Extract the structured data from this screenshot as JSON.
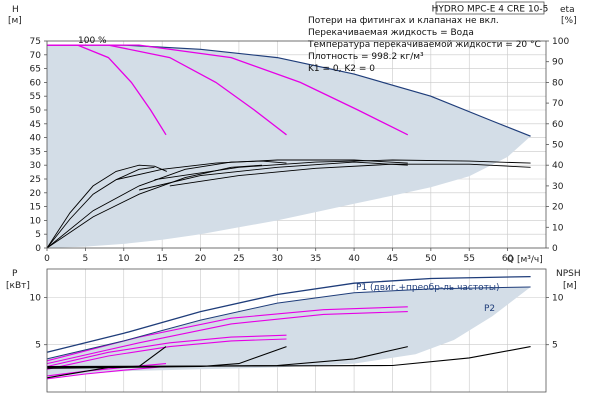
{
  "title": "HYDRO MPC-E 4 CRE 10-5",
  "notes": [
    "Потери на фитингах и клапанах не вкл.",
    "Перекачиваемая жидкость = Вода",
    "Температура перекачиваемой жидкости = 20 °C",
    "Плотность = 998.2 кг/м³",
    "K1 = 0, K2 = 0"
  ],
  "speed_label": "100 %",
  "colors": {
    "envelope_fill": "#d3dde7",
    "envelope_edge": "#1f3d7a",
    "pump_curves": "#e600e6",
    "efficiency_curves": "#000000",
    "p1_line": "#1f3d7a",
    "p2_line": "#1f3d7a",
    "grid": "#c9c9c9"
  },
  "chart_data": [
    {
      "type": "line",
      "panel": "head",
      "ylabel_left": [
        "H",
        "[м]"
      ],
      "ylabel_right": [
        "eta",
        "[%]"
      ],
      "xlabel": "Q [м³/ч]",
      "xlim": [
        0,
        65
      ],
      "ylim_left": [
        0,
        75
      ],
      "ylim_right": [
        0,
        100
      ],
      "x_ticks": [
        0,
        5,
        10,
        15,
        20,
        25,
        30,
        35,
        40,
        45,
        50,
        55,
        60
      ],
      "y_ticks_left": [
        0,
        5,
        10,
        15,
        20,
        25,
        30,
        35,
        40,
        45,
        50,
        55,
        60,
        65,
        70,
        75
      ],
      "y_ticks_right": [
        0,
        10,
        20,
        30,
        40,
        50,
        60,
        70,
        80,
        90,
        100
      ],
      "grid": true,
      "envelope": {
        "upper": [
          [
            0,
            73.5
          ],
          [
            10,
            73.5
          ],
          [
            20,
            72
          ],
          [
            30,
            69
          ],
          [
            40,
            63
          ],
          [
            50,
            55
          ],
          [
            58,
            46
          ],
          [
            63,
            40.5
          ]
        ],
        "lower": [
          [
            63,
            40.5
          ],
          [
            60,
            33
          ],
          [
            55,
            26
          ],
          [
            50,
            22
          ],
          [
            45,
            19
          ],
          [
            40,
            16
          ],
          [
            35,
            13
          ],
          [
            30,
            10
          ],
          [
            25,
            7.5
          ],
          [
            20,
            5
          ],
          [
            15,
            3
          ],
          [
            10,
            1.5
          ],
          [
            5,
            0.5
          ],
          [
            0,
            0
          ]
        ]
      },
      "pump_curves": [
        {
          "pumps": 1,
          "points": [
            [
              0,
              73.5
            ],
            [
              4,
              73.5
            ],
            [
              8,
              69
            ],
            [
              11,
              60
            ],
            [
              13.5,
              50
            ],
            [
              15.5,
              41
            ]
          ]
        },
        {
          "pumps": 2,
          "points": [
            [
              0,
              73.5
            ],
            [
              8,
              73.5
            ],
            [
              16,
              69
            ],
            [
              22,
              60
            ],
            [
              27,
              50
            ],
            [
              31.2,
              41
            ]
          ]
        },
        {
          "pumps": 3,
          "points": [
            [
              0,
              73.5
            ],
            [
              12,
              73.5
            ],
            [
              24,
              69
            ],
            [
              33,
              60
            ],
            [
              40.5,
              50
            ],
            [
              47,
              41
            ]
          ]
        }
      ],
      "efficiency_curves": [
        {
          "points": [
            [
              0,
              0
            ],
            [
              3,
              17
            ],
            [
              6,
              30
            ],
            [
              9,
              37
            ],
            [
              12,
              40
            ],
            [
              14,
              39.5
            ],
            [
              15.6,
              37
            ]
          ]
        },
        {
          "points": [
            [
              0,
              0
            ],
            [
              3,
              14
            ],
            [
              6,
              26
            ],
            [
              9,
              33
            ],
            [
              12,
              38
            ],
            [
              14,
              39
            ]
          ]
        },
        {
          "points": [
            [
              0,
              0
            ],
            [
              6,
              18
            ],
            [
              12,
              30
            ],
            [
              18,
              38
            ],
            [
              24,
              41.5
            ],
            [
              28,
              42
            ],
            [
              31.2,
              41
            ]
          ]
        },
        {
          "points": [
            [
              0,
              0
            ],
            [
              6,
              15
            ],
            [
              12,
              26
            ],
            [
              18,
              34
            ],
            [
              24,
              39
            ],
            [
              28,
              40
            ]
          ]
        },
        {
          "points": [
            [
              9,
              33
            ],
            [
              15,
              38
            ],
            [
              22,
              41
            ],
            [
              30,
              42.5
            ],
            [
              40,
              42.5
            ],
            [
              47,
              41
            ]
          ]
        },
        {
          "points": [
            [
              12,
              28
            ],
            [
              20,
              35
            ],
            [
              30,
              39
            ],
            [
              40,
              41.5
            ],
            [
              47,
              40
            ]
          ]
        },
        {
          "points": [
            [
              14,
              33
            ],
            [
              25,
              39
            ],
            [
              35,
              41.5
            ],
            [
              45,
              42.5
            ],
            [
              55,
              42
            ],
            [
              63,
              41
            ]
          ]
        },
        {
          "points": [
            [
              16,
              30
            ],
            [
              25,
              35
            ],
            [
              35,
              38.5
            ],
            [
              45,
              40.5
            ],
            [
              55,
              40.5
            ],
            [
              63,
              39
            ]
          ]
        }
      ]
    },
    {
      "type": "line",
      "panel": "power",
      "ylabel_left": [
        "P",
        "[кВт]"
      ],
      "ylabel_right": [
        "NPSH",
        "[м]"
      ],
      "xlim": [
        0,
        65
      ],
      "ylim_left": [
        0,
        13
      ],
      "ylim_right": [
        0,
        13
      ],
      "y_ticks_left": [
        5,
        10
      ],
      "y_ticks_right": [
        5,
        10
      ],
      "grid": true,
      "series": [
        {
          "name": "P1 (двиг.+преобр-ль частоты)",
          "points": [
            [
              0,
              4.2
            ],
            [
              10,
              6.2
            ],
            [
              20,
              8.5
            ],
            [
              30,
              10.3
            ],
            [
              40,
              11.5
            ],
            [
              50,
              12.0
            ],
            [
              63,
              12.2
            ]
          ]
        },
        {
          "name": "P2",
          "points": [
            [
              0,
              3.5
            ],
            [
              10,
              5.4
            ],
            [
              20,
              7.6
            ],
            [
              30,
              9.4
            ],
            [
              40,
              10.5
            ],
            [
              50,
              10.9
            ],
            [
              63,
              11.1
            ]
          ]
        }
      ],
      "envelope": {
        "upper": [
          [
            0,
            3.5
          ],
          [
            10,
            5.4
          ],
          [
            20,
            7.6
          ],
          [
            30,
            9.4
          ],
          [
            40,
            10.5
          ],
          [
            50,
            10.9
          ],
          [
            63,
            11.1
          ]
        ],
        "lower": [
          [
            63,
            11.1
          ],
          [
            58,
            8
          ],
          [
            53,
            5.5
          ],
          [
            48,
            4
          ],
          [
            40,
            3
          ],
          [
            30,
            2.6
          ],
          [
            20,
            2.4
          ],
          [
            10,
            2.2
          ],
          [
            0,
            1.6
          ]
        ]
      },
      "pump_power_curves": [
        {
          "points": [
            [
              0,
              1.7
            ],
            [
              5,
              2.2
            ],
            [
              10,
              2.6
            ],
            [
              15.5,
              3.0
            ]
          ]
        },
        {
          "points": [
            [
              0,
              2.7
            ],
            [
              8,
              4.2
            ],
            [
              16,
              5.2
            ],
            [
              24,
              5.8
            ],
            [
              31.2,
              6.0
            ]
          ]
        },
        {
          "points": [
            [
              0,
              3.3
            ],
            [
              12,
              5.8
            ],
            [
              24,
              7.8
            ],
            [
              36,
              8.7
            ],
            [
              47,
              9.0
            ]
          ]
        },
        {
          "points": [
            [
              0,
              3.0
            ],
            [
              12,
              5.2
            ],
            [
              24,
              7.2
            ],
            [
              36,
              8.2
            ],
            [
              47,
              8.5
            ]
          ]
        },
        {
          "points": [
            [
              0,
              2.4
            ],
            [
              8,
              3.8
            ],
            [
              16,
              4.8
            ],
            [
              24,
              5.4
            ],
            [
              31.2,
              5.6
            ]
          ]
        },
        {
          "points": [
            [
              0,
              1.4
            ],
            [
              5,
              1.9
            ],
            [
              10,
              2.3
            ],
            [
              15.5,
              2.7
            ]
          ]
        }
      ],
      "npsh_curves": [
        {
          "points": [
            [
              0,
              1.5
            ],
            [
              8,
              2.6
            ],
            [
              12,
              2.7
            ],
            [
              15.5,
              4.8
            ]
          ]
        },
        {
          "points": [
            [
              0,
              2.5
            ],
            [
              20,
              2.7
            ],
            [
              25,
              3.0
            ],
            [
              31.2,
              4.8
            ]
          ]
        },
        {
          "points": [
            [
              0,
              2.6
            ],
            [
              30,
              2.8
            ],
            [
              40,
              3.5
            ],
            [
              47,
              4.8
            ]
          ]
        },
        {
          "points": [
            [
              0,
              2.7
            ],
            [
              45,
              2.8
            ],
            [
              55,
              3.6
            ],
            [
              63,
              4.8
            ]
          ]
        }
      ]
    }
  ]
}
